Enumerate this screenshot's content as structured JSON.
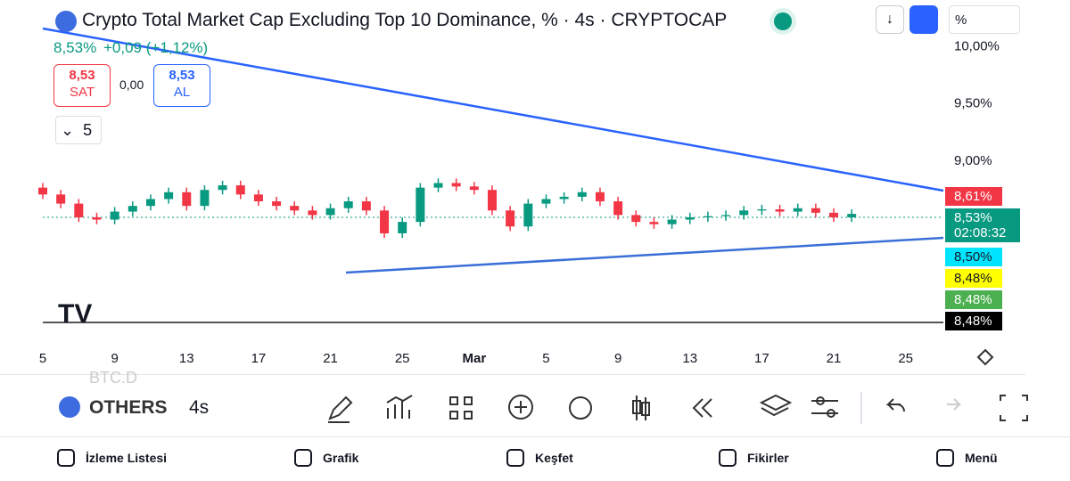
{
  "header": {
    "title": "Crypto Total Market Cap Excluding Top 10 Dominance, % · 4s · CRYPTOCAP",
    "price": "8,53%",
    "change": "+0,09 (+1,12%)",
    "scale_button": "%"
  },
  "trade": {
    "sell_price": "8,53",
    "sell_label": "SAT",
    "spread": "0,00",
    "buy_price": "8,53",
    "buy_label": "AL"
  },
  "indicators_toggle": "5",
  "chart": {
    "type": "candlestick",
    "xlim": [
      0,
      50.1
    ],
    "ylim": [
      7.44,
      10.09
    ],
    "yticks": [
      {
        "value": 10,
        "label": "10,00%"
      },
      {
        "value": 9.5,
        "label": "9,50%"
      },
      {
        "value": 9,
        "label": "9,00%"
      }
    ],
    "xticks": [
      {
        "value": 0,
        "label": "5"
      },
      {
        "value": 4,
        "label": "9"
      },
      {
        "value": 8,
        "label": "13"
      },
      {
        "value": 12,
        "label": "17"
      },
      {
        "value": 16,
        "label": "21"
      },
      {
        "value": 20,
        "label": "25"
      },
      {
        "value": 24,
        "label": "Mar"
      },
      {
        "value": 28,
        "label": "5"
      },
      {
        "value": 32,
        "label": "9"
      },
      {
        "value": 36,
        "label": "13"
      },
      {
        "value": 40,
        "label": "17"
      },
      {
        "value": 44,
        "label": "21"
      },
      {
        "value": 48,
        "label": "25"
      }
    ],
    "up_color": "#089981",
    "down_color": "#f23645",
    "open": [
      8.76,
      8.7,
      8.62,
      8.5,
      8.48,
      8.55,
      8.6,
      8.66,
      8.72,
      8.6,
      8.74,
      8.78,
      8.7,
      8.64,
      8.6,
      8.56,
      8.52,
      8.58,
      8.64,
      8.56,
      8.36,
      8.46,
      8.76,
      8.8,
      8.77,
      8.74,
      8.56,
      8.42,
      8.62,
      8.66,
      8.68,
      8.72,
      8.64,
      8.52,
      8.46,
      8.44,
      8.48,
      8.5,
      8.51,
      8.52,
      8.56,
      8.57,
      8.55,
      8.58,
      8.54,
      8.5
    ],
    "high": [
      8.8,
      8.74,
      8.66,
      8.54,
      8.59,
      8.64,
      8.7,
      8.76,
      8.76,
      8.78,
      8.82,
      8.82,
      8.74,
      8.68,
      8.64,
      8.6,
      8.62,
      8.68,
      8.68,
      8.6,
      8.5,
      8.8,
      8.84,
      8.84,
      8.81,
      8.78,
      8.6,
      8.66,
      8.7,
      8.72,
      8.76,
      8.76,
      8.68,
      8.56,
      8.5,
      8.52,
      8.54,
      8.55,
      8.56,
      8.6,
      8.61,
      8.61,
      8.62,
      8.62,
      8.58,
      8.57
    ],
    "low": [
      8.66,
      8.58,
      8.46,
      8.44,
      8.44,
      8.51,
      8.56,
      8.62,
      8.56,
      8.56,
      8.7,
      8.66,
      8.6,
      8.56,
      8.52,
      8.48,
      8.48,
      8.54,
      8.52,
      8.32,
      8.32,
      8.42,
      8.72,
      8.73,
      8.7,
      8.52,
      8.38,
      8.38,
      8.58,
      8.62,
      8.64,
      8.6,
      8.48,
      8.42,
      8.4,
      8.4,
      8.44,
      8.46,
      8.47,
      8.48,
      8.52,
      8.51,
      8.51,
      8.5,
      8.46,
      8.46
    ],
    "close": [
      8.7,
      8.62,
      8.5,
      8.48,
      8.55,
      8.6,
      8.66,
      8.72,
      8.6,
      8.74,
      8.78,
      8.7,
      8.64,
      8.6,
      8.56,
      8.52,
      8.58,
      8.64,
      8.56,
      8.36,
      8.46,
      8.76,
      8.8,
      8.77,
      8.74,
      8.56,
      8.42,
      8.62,
      8.66,
      8.68,
      8.72,
      8.64,
      8.52,
      8.46,
      8.44,
      8.48,
      8.5,
      8.51,
      8.52,
      8.56,
      8.57,
      8.55,
      8.58,
      8.54,
      8.5,
      8.53
    ]
  },
  "price_tags": [
    {
      "label": "8,61%",
      "color": "#f23645"
    },
    {
      "label": "8,53%",
      "sub": "02:08:32",
      "color": "#089981"
    },
    {
      "label": "8,50%",
      "color": "#00e5ff"
    },
    {
      "label": "8,48%",
      "color": "#ffff00"
    },
    {
      "label": "8,48%",
      "color": "#4caf50"
    },
    {
      "label": "8,48%",
      "color": "#000000"
    }
  ],
  "toolbar": {
    "watch_prev": "BTC.D",
    "symbol": "OTHERS",
    "interval": "4s"
  },
  "nav": [
    "İzleme Listesi",
    "Grafik",
    "Keşfet",
    "Fikirler",
    "Menü"
  ]
}
